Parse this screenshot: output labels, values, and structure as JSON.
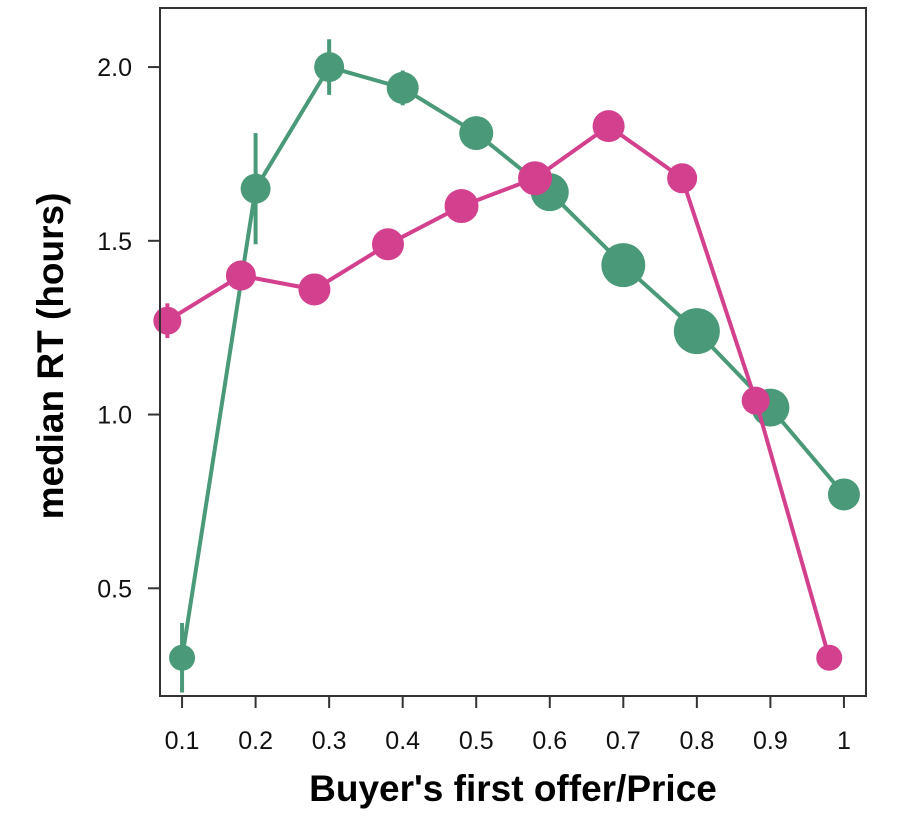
{
  "chart_data": {
    "type": "line",
    "title": "",
    "xlabel": "Buyer's first offer/Price",
    "ylabel": "median RT (hours)",
    "xlim": [
      0.07,
      1.03
    ],
    "ylim": [
      0.19,
      2.17
    ],
    "x_ticks": [
      0.1,
      0.2,
      0.3,
      0.4,
      0.5,
      0.6,
      0.7,
      0.8,
      0.9,
      1
    ],
    "x_tick_labels": [
      "0.1",
      "0.2",
      "0.3",
      "0.4",
      "0.5",
      "0.6",
      "0.7",
      "0.8",
      "0.9",
      "1"
    ],
    "y_ticks": [
      0.5,
      1.0,
      1.5,
      2.0
    ],
    "y_tick_labels": [
      "0.5",
      "1.0",
      "1.5",
      "2.0"
    ],
    "grid": false,
    "legend": "none",
    "series": [
      {
        "color": "#4a9a79",
        "x": [
          0.1,
          0.2,
          0.3,
          0.4,
          0.5,
          0.6,
          0.7,
          0.8,
          0.9,
          1.0
        ],
        "y": [
          0.3,
          1.65,
          2.0,
          1.94,
          1.81,
          1.64,
          1.43,
          1.24,
          1.02,
          0.77
        ],
        "error": [
          0.1,
          0.16,
          0.08,
          0.05,
          0.02,
          0.02,
          0.01,
          0.01,
          0.01,
          0.02
        ],
        "size": [
          13,
          15,
          15,
          16,
          17,
          19,
          22,
          23,
          19,
          16
        ]
      },
      {
        "color": "#d3418e",
        "x": [
          0.08,
          0.18,
          0.28,
          0.38,
          0.48,
          0.58,
          0.68,
          0.78,
          0.88,
          0.98
        ],
        "y": [
          1.27,
          1.4,
          1.36,
          1.49,
          1.6,
          1.68,
          1.83,
          1.68,
          1.04,
          0.3
        ],
        "error": [
          0.05,
          0.02,
          0.02,
          0.02,
          0.02,
          0.02,
          0.02,
          0.02,
          0.02,
          0.02
        ],
        "size": [
          14,
          15,
          16,
          16,
          17,
          17,
          16,
          15,
          14,
          13
        ]
      }
    ]
  }
}
